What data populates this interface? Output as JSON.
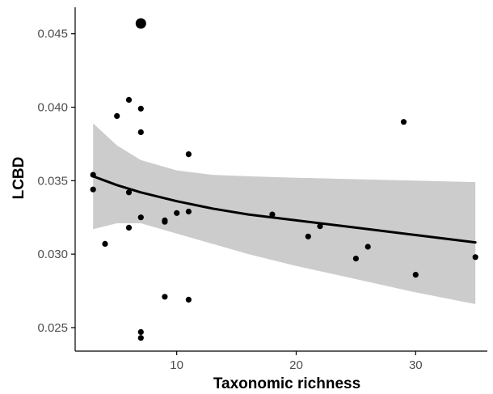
{
  "chart_data": {
    "type": "scatter",
    "title": "",
    "xlabel": "Taxonomic richness",
    "ylabel": "LCBD",
    "xlim": [
      1.5,
      36
    ],
    "ylim": [
      0.0234,
      0.0468
    ],
    "x_ticks": [
      10,
      20,
      30
    ],
    "x_tick_labels": [
      "10",
      "20",
      "30"
    ],
    "y_ticks": [
      0.025,
      0.03,
      0.035,
      0.04,
      0.045
    ],
    "y_tick_labels": [
      "0.025",
      "0.030",
      "0.035",
      "0.040",
      "0.045"
    ],
    "grid": false,
    "legend": "none",
    "points": [
      {
        "x": 7,
        "y": 0.0457,
        "emphasized": true
      },
      {
        "x": 6,
        "y": 0.0405
      },
      {
        "x": 7,
        "y": 0.0399
      },
      {
        "x": 5,
        "y": 0.0394
      },
      {
        "x": 7,
        "y": 0.0383
      },
      {
        "x": 29,
        "y": 0.039
      },
      {
        "x": 11,
        "y": 0.0368
      },
      {
        "x": 3,
        "y": 0.0354
      },
      {
        "x": 3,
        "y": 0.0344
      },
      {
        "x": 6,
        "y": 0.0342
      },
      {
        "x": 11,
        "y": 0.0329
      },
      {
        "x": 10,
        "y": 0.0328
      },
      {
        "x": 7,
        "y": 0.0325
      },
      {
        "x": 9,
        "y": 0.0323
      },
      {
        "x": 9,
        "y": 0.0322
      },
      {
        "x": 18,
        "y": 0.0327
      },
      {
        "x": 6,
        "y": 0.0318
      },
      {
        "x": 22,
        "y": 0.0319
      },
      {
        "x": 21,
        "y": 0.0312
      },
      {
        "x": 4,
        "y": 0.0307
      },
      {
        "x": 26,
        "y": 0.0305
      },
      {
        "x": 25,
        "y": 0.0297
      },
      {
        "x": 35,
        "y": 0.0298
      },
      {
        "x": 30,
        "y": 0.0286
      },
      {
        "x": 9,
        "y": 0.0271
      },
      {
        "x": 11,
        "y": 0.0269
      },
      {
        "x": 7,
        "y": 0.0247
      },
      {
        "x": 7,
        "y": 0.0243
      }
    ],
    "fit_line": [
      {
        "x": 3,
        "y": 0.0353
      },
      {
        "x": 5,
        "y": 0.0347
      },
      {
        "x": 7,
        "y": 0.0342
      },
      {
        "x": 10,
        "y": 0.0336
      },
      {
        "x": 13,
        "y": 0.0331
      },
      {
        "x": 16,
        "y": 0.0327
      },
      {
        "x": 20,
        "y": 0.0323
      },
      {
        "x": 25,
        "y": 0.0318
      },
      {
        "x": 30,
        "y": 0.0313
      },
      {
        "x": 35,
        "y": 0.0308
      }
    ],
    "confidence_band": [
      {
        "x": 3,
        "lower": 0.0317,
        "upper": 0.0389
      },
      {
        "x": 5,
        "lower": 0.0321,
        "upper": 0.0374
      },
      {
        "x": 7,
        "lower": 0.0321,
        "upper": 0.0364
      },
      {
        "x": 10,
        "lower": 0.0314,
        "upper": 0.0357
      },
      {
        "x": 13,
        "lower": 0.0307,
        "upper": 0.0354
      },
      {
        "x": 16,
        "lower": 0.03,
        "upper": 0.0353
      },
      {
        "x": 20,
        "lower": 0.0292,
        "upper": 0.0352
      },
      {
        "x": 25,
        "lower": 0.0283,
        "upper": 0.0351
      },
      {
        "x": 30,
        "lower": 0.0274,
        "upper": 0.035
      },
      {
        "x": 35,
        "lower": 0.0266,
        "upper": 0.0349
      }
    ],
    "colors": {
      "points": "#000000",
      "line": "#000000",
      "band": "#cccccc",
      "axis": "#000000",
      "tick_text": "#4d4d4d"
    }
  }
}
